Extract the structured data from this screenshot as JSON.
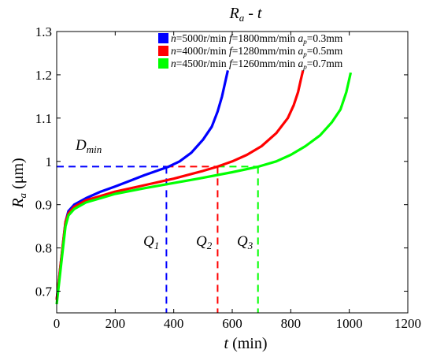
{
  "chart_data": {
    "type": "line",
    "title": {
      "main": "R",
      "sub": "a",
      "rest": " - t"
    },
    "xlabel": {
      "main": "t",
      "rest": " (min)"
    },
    "ylabel": {
      "main": "R",
      "sub": "a",
      "rest": " (μm)"
    },
    "xlim": [
      0,
      1200
    ],
    "ylim": [
      0.65,
      1.3
    ],
    "xticks": [
      0,
      200,
      400,
      600,
      800,
      1000,
      1200
    ],
    "yticks": [
      0.7,
      0.8,
      0.9,
      1,
      1.1,
      1.2,
      1.3
    ],
    "grid": false,
    "legend_position": "top-right",
    "series": [
      {
        "name": "n=5000r/min f=1800mm/min ap=0.3mm",
        "legend": {
          "n": "n",
          "nval": "=5000r/min ",
          "f": "f",
          "fval": "=1800mm/min ",
          "a": "a",
          "asub": "p",
          "aval": "=0.3mm"
        },
        "color": "#0000ff",
        "x": [
          0,
          10,
          20,
          30,
          40,
          60,
          100,
          150,
          200,
          250,
          300,
          350,
          380,
          420,
          460,
          500,
          530,
          550,
          565,
          575,
          585
        ],
        "y": [
          0.68,
          0.74,
          0.8,
          0.86,
          0.885,
          0.9,
          0.915,
          0.93,
          0.942,
          0.955,
          0.968,
          0.98,
          0.987,
          1.0,
          1.02,
          1.05,
          1.08,
          1.115,
          1.15,
          1.18,
          1.21
        ]
      },
      {
        "name": "n=4000r/min f=1280mm/min ap=0.5mm",
        "legend": {
          "n": "n",
          "nval": "=4000r/min ",
          "f": "f",
          "fval": "=1280mm/min ",
          "a": "a",
          "asub": "p",
          "aval": "=0.5mm"
        },
        "color": "#ff0000",
        "x": [
          0,
          10,
          20,
          30,
          40,
          60,
          100,
          200,
          300,
          400,
          500,
          550,
          600,
          650,
          700,
          750,
          790,
          810,
          825,
          835,
          842
        ],
        "y": [
          0.68,
          0.74,
          0.8,
          0.86,
          0.88,
          0.895,
          0.91,
          0.93,
          0.945,
          0.96,
          0.978,
          0.988,
          1.0,
          1.015,
          1.035,
          1.065,
          1.1,
          1.13,
          1.16,
          1.19,
          1.21
        ]
      },
      {
        "name": "n=4500r/min f=1260mm/min ap=0.7mm",
        "legend": {
          "n": "n",
          "nval": "=4500r/min ",
          "f": "f",
          "fval": "=1260mm/min ",
          "a": "a",
          "asub": "p",
          "aval": "=0.7mm"
        },
        "color": "#00ff00",
        "x": [
          0,
          10,
          20,
          30,
          40,
          60,
          100,
          200,
          300,
          400,
          500,
          600,
          690,
          750,
          800,
          850,
          900,
          940,
          970,
          990,
          1005
        ],
        "y": [
          0.67,
          0.73,
          0.79,
          0.85,
          0.875,
          0.89,
          0.905,
          0.925,
          0.938,
          0.95,
          0.962,
          0.975,
          0.988,
          1.0,
          1.015,
          1.035,
          1.06,
          1.09,
          1.12,
          1.16,
          1.205
        ]
      }
    ],
    "reference_lines": {
      "dmin_value": 0.988,
      "dmin_label": {
        "main": "D",
        "sub": "min"
      },
      "q_points": [
        {
          "label": {
            "main": "Q",
            "sub": "1"
          },
          "x": 375,
          "color": "#0000ff"
        },
        {
          "label": {
            "main": "Q",
            "sub": "2"
          },
          "x": 550,
          "color": "#ff0000"
        },
        {
          "label": {
            "main": "Q",
            "sub": "3"
          },
          "x": 688,
          "color": "#00ff00"
        }
      ]
    }
  }
}
